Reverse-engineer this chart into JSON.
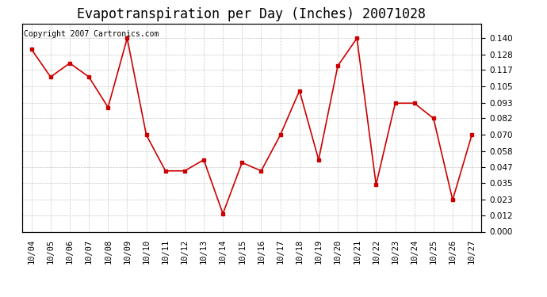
{
  "title": "Evapotranspiration per Day (Inches) 20071028",
  "copyright_text": "Copyright 2007 Cartronics.com",
  "x_labels": [
    "10/04",
    "10/05",
    "10/06",
    "10/07",
    "10/08",
    "10/09",
    "10/10",
    "10/11",
    "10/12",
    "10/13",
    "10/14",
    "10/15",
    "10/16",
    "10/17",
    "10/18",
    "10/19",
    "10/20",
    "10/21",
    "10/22",
    "10/23",
    "10/24",
    "10/25",
    "10/26",
    "10/27"
  ],
  "y_values": [
    0.132,
    0.112,
    0.122,
    0.112,
    0.09,
    0.14,
    0.07,
    0.044,
    0.044,
    0.052,
    0.013,
    0.05,
    0.044,
    0.07,
    0.102,
    0.052,
    0.12,
    0.14,
    0.034,
    0.093,
    0.093,
    0.082,
    0.023,
    0.07
  ],
  "line_color": "#cc0000",
  "marker": "s",
  "marker_size": 3,
  "background_color": "#ffffff",
  "grid_color": "#c8c8c8",
  "ylim": [
    0.0,
    0.1505
  ],
  "yticks": [
    0.0,
    0.012,
    0.023,
    0.035,
    0.047,
    0.058,
    0.07,
    0.082,
    0.093,
    0.105,
    0.117,
    0.128,
    0.14
  ],
  "title_fontsize": 12,
  "copyright_fontsize": 7,
  "tick_fontsize": 7.5
}
